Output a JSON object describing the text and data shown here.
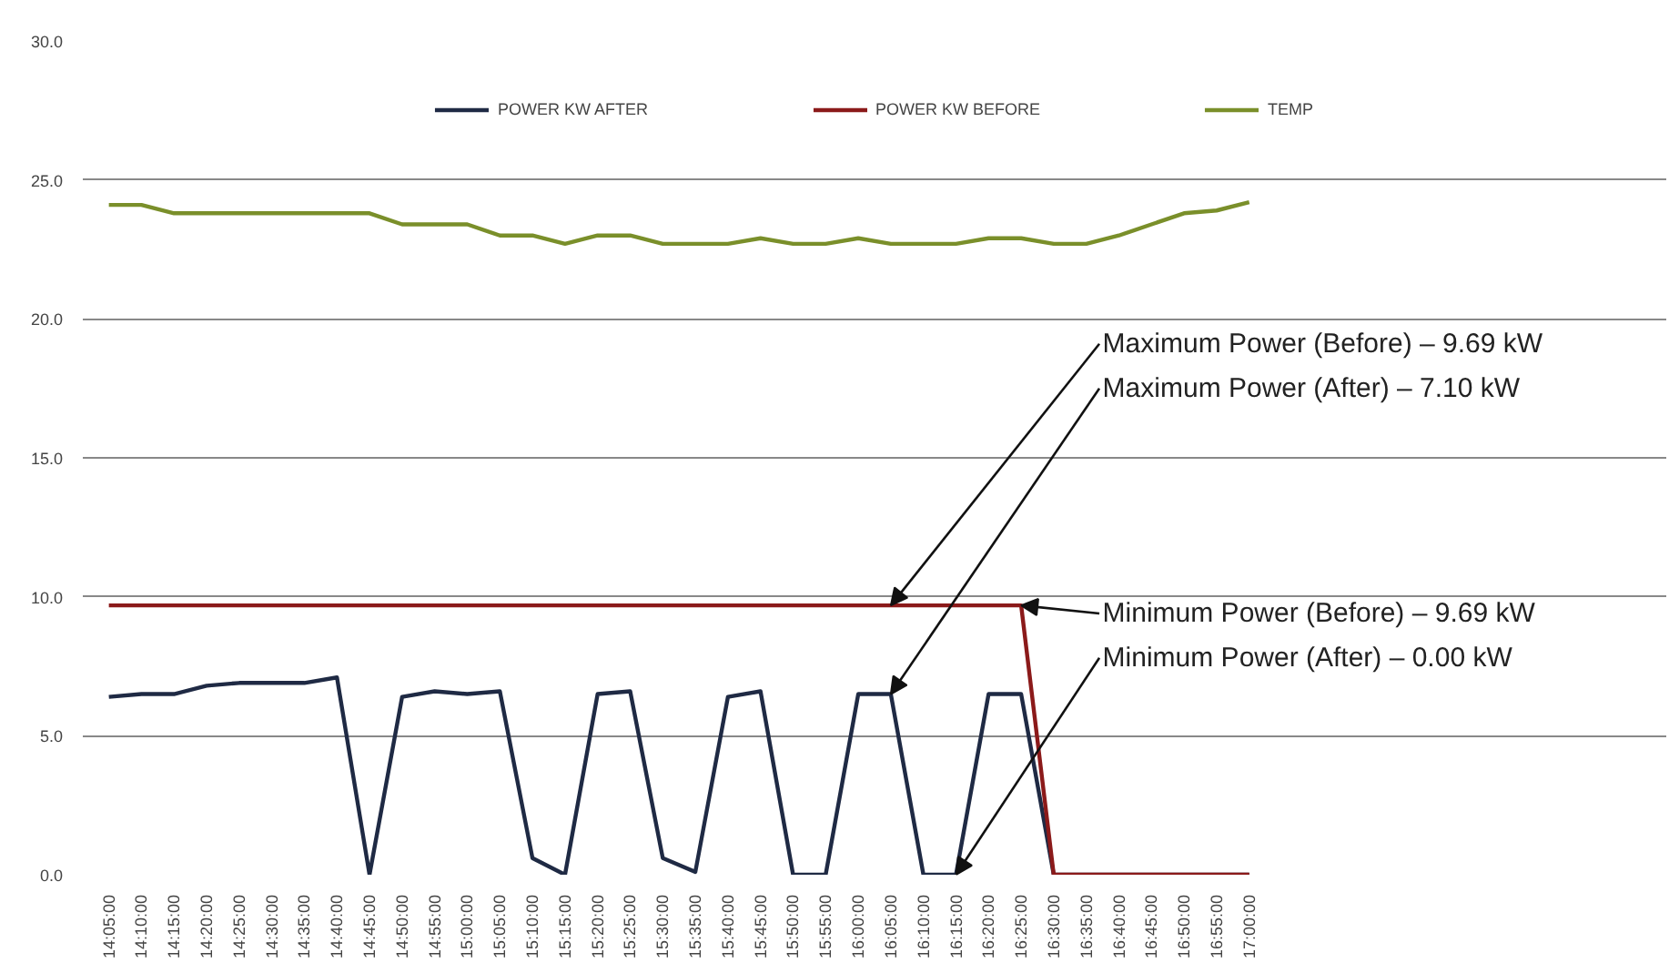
{
  "chart_data": {
    "type": "line",
    "categories": [
      "14:05:00",
      "14:10:00",
      "14:15:00",
      "14:20:00",
      "14:25:00",
      "14:30:00",
      "14:35:00",
      "14:40:00",
      "14:45:00",
      "14:50:00",
      "14:55:00",
      "15:00:00",
      "15:05:00",
      "15:10:00",
      "15:15:00",
      "15:20:00",
      "15:25:00",
      "15:30:00",
      "15:35:00",
      "15:40:00",
      "15:45:00",
      "15:50:00",
      "15:55:00",
      "16:00:00",
      "16:05:00",
      "16:10:00",
      "16:15:00",
      "16:20:00",
      "16:25:00",
      "16:30:00",
      "16:35:00",
      "16:40:00",
      "16:45:00",
      "16:50:00",
      "16:55:00",
      "17:00:00"
    ],
    "series": [
      {
        "name": "POWER KW AFTER",
        "color": "#1f2a44",
        "values": [
          6.4,
          6.5,
          6.5,
          6.8,
          6.9,
          6.9,
          6.9,
          7.1,
          0.0,
          6.4,
          6.6,
          6.5,
          6.6,
          0.6,
          0.0,
          6.5,
          6.6,
          0.6,
          0.1,
          6.4,
          6.6,
          0.0,
          0.0,
          6.5,
          6.5,
          0.0,
          0.0,
          6.5,
          6.5,
          0.0,
          0.0,
          0.0,
          0.0,
          0.0,
          0.0,
          0.0
        ]
      },
      {
        "name": "POWER KW BEFORE",
        "color": "#8b1a1a",
        "values": [
          9.69,
          9.69,
          9.69,
          9.69,
          9.69,
          9.69,
          9.69,
          9.69,
          9.69,
          9.69,
          9.69,
          9.69,
          9.69,
          9.69,
          9.69,
          9.69,
          9.69,
          9.69,
          9.69,
          9.69,
          9.69,
          9.69,
          9.69,
          9.69,
          9.69,
          9.69,
          9.69,
          9.69,
          9.69,
          0.0,
          0.0,
          0.0,
          0.0,
          0.0,
          0.0,
          0.0
        ]
      },
      {
        "name": "TEMP",
        "color": "#7a8f2a",
        "values": [
          24.1,
          24.1,
          23.8,
          23.8,
          23.8,
          23.8,
          23.8,
          23.8,
          23.8,
          23.4,
          23.4,
          23.4,
          23.0,
          23.0,
          22.7,
          23.0,
          23.0,
          22.7,
          22.7,
          22.7,
          22.9,
          22.7,
          22.7,
          22.9,
          22.7,
          22.7,
          22.7,
          22.9,
          22.9,
          22.7,
          22.7,
          23.0,
          23.4,
          23.8,
          23.9,
          24.2
        ]
      }
    ],
    "ylim": [
      0,
      30
    ],
    "yticks": [
      {
        "value": 0,
        "label": "0.0"
      },
      {
        "value": 5,
        "label": "5.0"
      },
      {
        "value": 10,
        "label": "10.0"
      },
      {
        "value": 15,
        "label": "15.0"
      },
      {
        "value": 20,
        "label": "20.0"
      },
      {
        "value": 25,
        "label": "25.0"
      },
      {
        "value": 30,
        "label": "30.0"
      }
    ],
    "grid": "y",
    "legend": "top",
    "annotations": [
      {
        "text": "Maximum Power (Before) – 9.69 kW",
        "x": "16:05:00",
        "y": 9.69
      },
      {
        "text": "Maximum Power (After) – 7.10 kW",
        "x": "16:05:00",
        "y": 6.5
      },
      {
        "text": "Minimum Power (Before) – 9.69 kW",
        "x": "16:25:00",
        "y": 9.69
      },
      {
        "text": "Minimum Power (After) – 0.00 kW",
        "x": "16:15:00",
        "y": 0.0
      }
    ]
  }
}
